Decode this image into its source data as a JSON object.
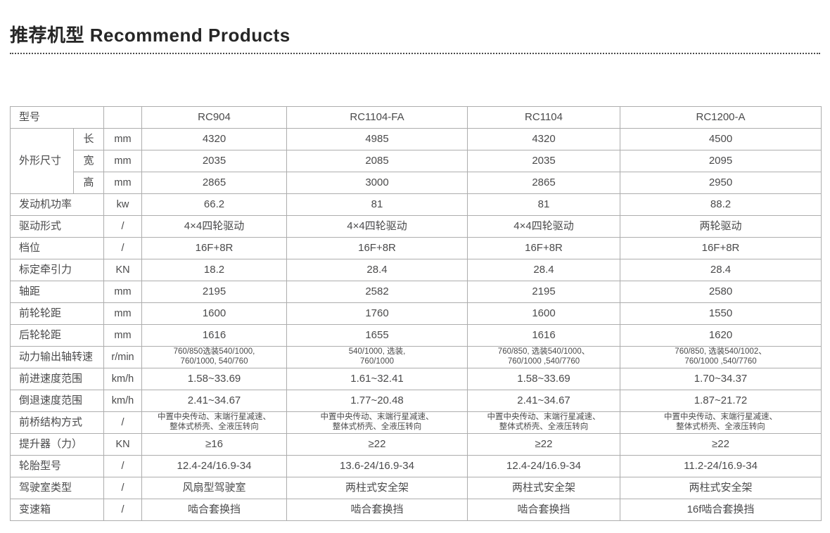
{
  "header": {
    "title": "推荐机型 Recommend Products"
  },
  "colors": {
    "border": "#adadad",
    "text": "#4a4a4b",
    "title": "#262626"
  },
  "table": {
    "header": {
      "label": "型号",
      "unit": "",
      "models": [
        "RC904",
        "RC1104-FA",
        "RC1104",
        "RC1200-A"
      ]
    },
    "dimensions": {
      "label": "外形尺寸",
      "rows": [
        {
          "sub": "长",
          "unit": "mm",
          "values": [
            "4320",
            "4985",
            "4320",
            "4500"
          ]
        },
        {
          "sub": "宽",
          "unit": "mm",
          "values": [
            "2035",
            "2085",
            "2035",
            "2095"
          ]
        },
        {
          "sub": "高",
          "unit": "mm",
          "values": [
            "2865",
            "3000",
            "2865",
            "2950"
          ]
        }
      ]
    },
    "rows": [
      {
        "label": "发动机功率",
        "unit": "kw",
        "small": false,
        "values": [
          "66.2",
          "81",
          "81",
          "88.2"
        ]
      },
      {
        "label": "驱动形式",
        "unit": "/",
        "small": false,
        "values": [
          "4×4四轮驱动",
          "4×4四轮驱动",
          "4×4四轮驱动",
          "两轮驱动"
        ]
      },
      {
        "label": "档位",
        "unit": "/",
        "small": false,
        "values": [
          "16F+8R",
          "16F+8R",
          "16F+8R",
          "16F+8R"
        ]
      },
      {
        "label": "标定牵引力",
        "unit": "KN",
        "small": false,
        "values": [
          "18.2",
          "28.4",
          "28.4",
          "28.4"
        ]
      },
      {
        "label": "轴距",
        "unit": "mm",
        "small": false,
        "values": [
          "2195",
          "2582",
          "2195",
          "2580"
        ]
      },
      {
        "label": "前轮轮距",
        "unit": "mm",
        "small": false,
        "values": [
          "1600",
          "1760",
          "1600",
          "1550"
        ]
      },
      {
        "label": "后轮轮距",
        "unit": "mm",
        "small": false,
        "values": [
          "1616",
          "1655",
          "1616",
          "1620"
        ]
      },
      {
        "label": "动力输出轴转速",
        "unit": "r/min",
        "small": true,
        "values": [
          "760/850选装540/1000,\n760/1000, 540/760",
          "540/1000, 选装,\n760/1000",
          "760/850, 选装540/1000、\n760/1000 ,540/7760",
          "760/850, 选装540/1002、\n760/1000 ,540/7760"
        ]
      },
      {
        "label": "前进速度范围",
        "unit": "km/h",
        "small": false,
        "values": [
          "1.58~33.69",
          "1.61~32.41",
          "1.58~33.69",
          "1.70~34.37"
        ]
      },
      {
        "label": "倒退速度范围",
        "unit": "km/h",
        "small": false,
        "values": [
          "2.41~34.67",
          "1.77~20.48",
          "2.41~34.67",
          "1.87~21.72"
        ]
      },
      {
        "label": "前桥结构方式",
        "unit": "/",
        "small": true,
        "values": [
          "中置中央传动、末端行星减速、\n整体式桥壳、全液压转向",
          "中置中央传动、末端行星减速、\n整体式桥壳、全液压转向",
          "中置中央传动、末端行星减速、\n整体式桥壳、全液压转向",
          "中置中央传动、末端行星减速、\n整体式桥壳、全液压转向"
        ]
      },
      {
        "label": "提升器（力）",
        "unit": "KN",
        "small": false,
        "values": [
          "≥16",
          "≥22",
          "≥22",
          "≥22"
        ]
      },
      {
        "label": "轮胎型号",
        "unit": "/",
        "small": false,
        "values": [
          "12.4-24/16.9-34",
          "13.6-24/16.9-34",
          "12.4-24/16.9-34",
          "11.2-24/16.9-34"
        ]
      },
      {
        "label": "驾驶室类型",
        "unit": "/",
        "small": false,
        "values": [
          "风扇型驾驶室",
          "两柱式安全架",
          "两柱式安全架",
          "两柱式安全架"
        ]
      },
      {
        "label": "变速箱",
        "unit": "/",
        "small": false,
        "values": [
          "啮合套换挡",
          "啮合套换挡",
          "啮合套换挡",
          "16f啮合套换挡"
        ]
      }
    ]
  }
}
